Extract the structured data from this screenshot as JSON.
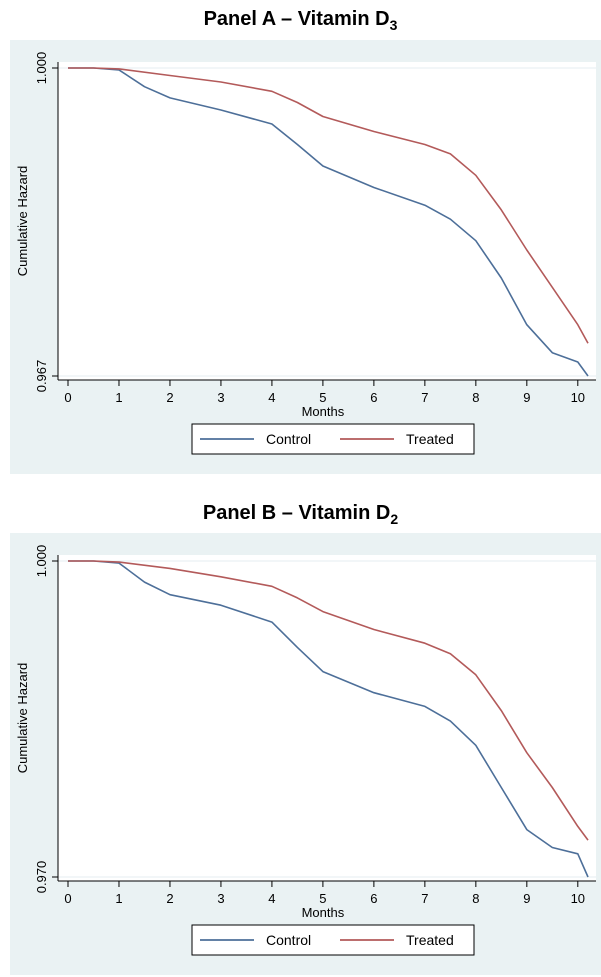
{
  "panels": [
    {
      "title_main": "Panel A – Vitamin D",
      "title_sub": "3"
    },
    {
      "title_main": "Panel B – Vitamin D",
      "title_sub": "2"
    }
  ],
  "colors": {
    "control": "#4d6f99",
    "treated": "#b35a5a",
    "plot_bg": "#eaf2f3"
  },
  "chart_data": [
    {
      "type": "line",
      "ylabel": "Cumulative Hazard",
      "xlabel": "Months",
      "xlim": [
        0,
        10.2
      ],
      "ylim": [
        0.967,
        1.0
      ],
      "x_ticks": [
        0,
        1,
        2,
        3,
        4,
        5,
        6,
        7,
        8,
        9,
        10
      ],
      "y_ticks": [
        "1.000",
        "0.967"
      ],
      "legend": "bottom",
      "series": [
        {
          "name": "Control",
          "x": [
            0,
            0.5,
            1,
            1.5,
            2,
            3,
            4,
            4.5,
            5,
            6,
            7,
            7.5,
            8,
            8.5,
            9,
            9.5,
            10,
            10.2
          ],
          "y": [
            1.0,
            1.0,
            0.9998,
            0.998,
            0.9968,
            0.9955,
            0.994,
            0.9918,
            0.9895,
            0.9872,
            0.9853,
            0.9838,
            0.9815,
            0.9775,
            0.9725,
            0.9695,
            0.9685,
            0.967
          ]
        },
        {
          "name": "Treated",
          "x": [
            0,
            0.5,
            1,
            2,
            3,
            4,
            4.5,
            5,
            6,
            7,
            7.5,
            8,
            8.5,
            9,
            9.5,
            10,
            10.2
          ],
          "y": [
            1.0,
            1.0,
            0.9999,
            0.9992,
            0.9985,
            0.9975,
            0.9963,
            0.9948,
            0.9932,
            0.9918,
            0.9908,
            0.9885,
            0.9848,
            0.9805,
            0.9765,
            0.9725,
            0.9705
          ]
        }
      ]
    },
    {
      "type": "line",
      "ylabel": "Cumulative Hazard",
      "xlabel": "Months",
      "xlim": [
        0,
        10.2
      ],
      "ylim": [
        0.97,
        1.0
      ],
      "x_ticks": [
        0,
        1,
        2,
        3,
        4,
        5,
        6,
        7,
        8,
        9,
        10
      ],
      "y_ticks": [
        "1.000",
        "0.970"
      ],
      "legend": "bottom",
      "series": [
        {
          "name": "Control",
          "x": [
            0,
            0.5,
            1,
            1.5,
            2,
            3,
            4,
            4.5,
            5,
            6,
            7,
            7.5,
            8,
            8.5,
            9,
            9.5,
            10,
            10.2
          ],
          "y": [
            1.0,
            1.0,
            0.9998,
            0.998,
            0.9968,
            0.9958,
            0.9942,
            0.9918,
            0.9895,
            0.9875,
            0.9862,
            0.9848,
            0.9825,
            0.9785,
            0.9745,
            0.9728,
            0.9722,
            0.97
          ]
        },
        {
          "name": "Treated",
          "x": [
            0,
            0.5,
            1,
            2,
            3,
            4,
            4.5,
            5,
            6,
            7,
            7.5,
            8,
            8.5,
            9,
            9.5,
            10,
            10.2
          ],
          "y": [
            1.0,
            1.0,
            0.9999,
            0.9993,
            0.9985,
            0.9976,
            0.9965,
            0.9952,
            0.9935,
            0.9922,
            0.9912,
            0.9892,
            0.9858,
            0.9818,
            0.9785,
            0.9748,
            0.9735
          ]
        }
      ]
    }
  ]
}
